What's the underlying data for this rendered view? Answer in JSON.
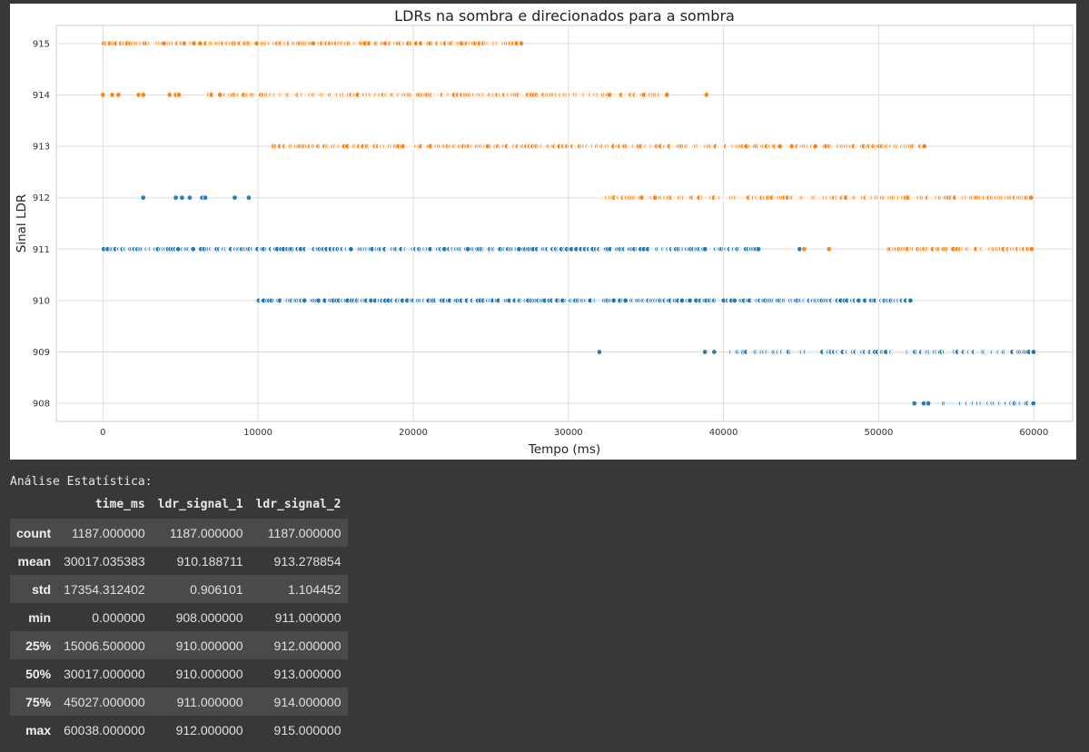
{
  "chart_data": {
    "type": "scatter",
    "title": "LDRs na sombra e direcionados para a sombra",
    "xlabel": "Tempo (ms)",
    "ylabel": "Sinal LDR",
    "xlim": [
      -3000,
      62500
    ],
    "ylim": [
      907.65,
      915.35
    ],
    "xticks": [
      0,
      10000,
      20000,
      30000,
      40000,
      50000,
      60000
    ],
    "yticks": [
      908,
      909,
      910,
      911,
      912,
      913,
      914,
      915
    ],
    "grid": true,
    "legend": "none",
    "colors": {
      "series1": "#1f77b4",
      "series2": "#ff7f0e"
    },
    "series": [
      {
        "segments": [
          {
            "y": 912,
            "points": [
              2600,
              4700,
              5100,
              5600,
              6400,
              6600,
              8500,
              9400
            ]
          },
          {
            "y": 911,
            "range": [
              0,
              42300
            ],
            "density": 0.55
          },
          {
            "y": 911,
            "points": [
              44900
            ]
          },
          {
            "y": 910,
            "range": [
              9900,
              52100
            ],
            "density": 0.5
          },
          {
            "y": 909,
            "points": [
              32000,
              38800,
              39400
            ]
          },
          {
            "y": 909,
            "range": [
              40500,
              60000
            ],
            "density": 0.75
          },
          {
            "y": 908,
            "points": [
              52300,
              52900,
              53200
            ]
          },
          {
            "y": 908,
            "range": [
              54200,
              60000
            ],
            "density": 0.8
          }
        ]
      },
      {
        "segments": [
          {
            "y": 915,
            "range": [
              0,
              27000
            ],
            "density": 0.6
          },
          {
            "y": 914,
            "points": [
              0,
              600,
              1000,
              2300,
              2600,
              4300,
              4700,
              4900
            ]
          },
          {
            "y": 914,
            "range": [
              6800,
              36500
            ],
            "density": 0.7
          },
          {
            "y": 914,
            "points": [
              38900
            ]
          },
          {
            "y": 913,
            "range": [
              11000,
              53000
            ],
            "density": 0.65
          },
          {
            "y": 912,
            "range": [
              32200,
              60000
            ],
            "density": 0.7
          },
          {
            "y": 911,
            "points": [
              45200,
              46800
            ]
          },
          {
            "y": 911,
            "range": [
              50200,
              60000
            ],
            "density": 0.6
          }
        ]
      }
    ]
  },
  "stats": {
    "title": "Análise Estatística:",
    "columns": [
      "",
      "time_ms",
      "ldr_signal_1",
      "ldr_signal_2"
    ],
    "rows": [
      [
        "count",
        "1187.000000",
        "1187.000000",
        "1187.000000"
      ],
      [
        "mean",
        "30017.035383",
        "910.188711",
        "913.278854"
      ],
      [
        "std",
        "17354.312402",
        "0.906101",
        "1.104452"
      ],
      [
        "min",
        "0.000000",
        "908.000000",
        "911.000000"
      ],
      [
        "25%",
        "15006.500000",
        "910.000000",
        "912.000000"
      ],
      [
        "50%",
        "30017.000000",
        "910.000000",
        "913.000000"
      ],
      [
        "75%",
        "45027.000000",
        "911.000000",
        "914.000000"
      ],
      [
        "max",
        "60038.000000",
        "912.000000",
        "915.000000"
      ]
    ]
  }
}
